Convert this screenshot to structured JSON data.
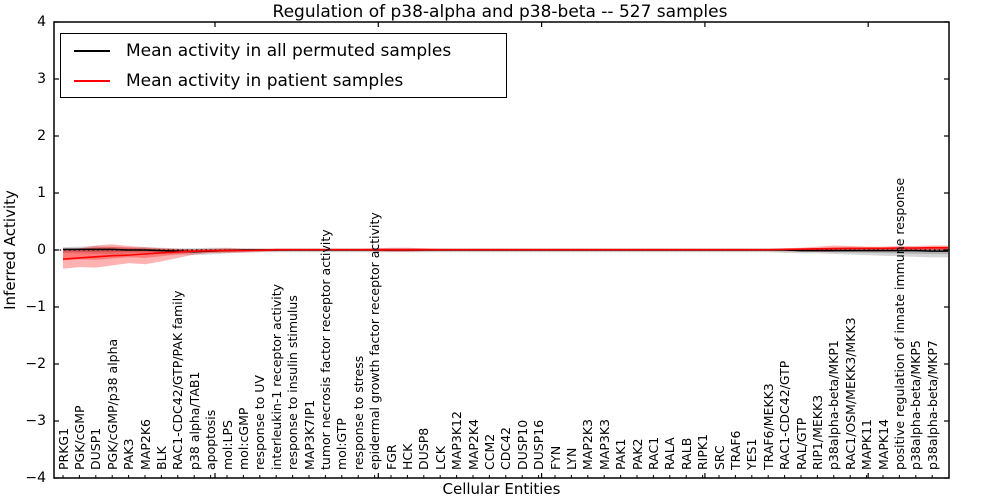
{
  "title": {
    "text": "Regulation of p38-alpha and p38-beta -- 527 samples"
  },
  "axes": {
    "ylabel": "Inferred Activity",
    "xlabel": "Cellular Entities",
    "ytick_values": [
      4,
      3,
      2,
      1,
      0,
      -1,
      -2,
      -3,
      -4
    ],
    "ytick_labels": [
      "4",
      "3",
      "2",
      "1",
      "0",
      "−1",
      "−2",
      "−3",
      "−4"
    ],
    "ylim": [
      -4,
      4
    ]
  },
  "legend": {
    "entries": [
      {
        "label": "Mean activity in all permuted samples",
        "color": "#000000"
      },
      {
        "label": "Mean activity in patient samples",
        "color": "#ff0000"
      }
    ]
  },
  "chart_data": {
    "type": "line",
    "title": "Regulation of p38-alpha and p38-beta -- 527 samples",
    "xlabel": "Cellular Entities",
    "ylabel": "Inferred Activity",
    "ylim": [
      -4,
      4
    ],
    "grid": false,
    "legend_position": "upper left",
    "zero_reference_line": {
      "style": "dotted",
      "color": "#000000",
      "y": 0
    },
    "categories": [
      "PRKG1",
      "PGK/cGMP",
      "DUSP1",
      "PGK/cGMP/p38 alpha",
      "PAK3",
      "MAP2K6",
      "BLK",
      "RAC1-CDC42/GTP/PAK family",
      "p38 alpha/TAB1",
      "apoptosis",
      "mol:LPS",
      "mol:cGMP",
      "response to UV",
      "interleukin-1 receptor activity",
      "response to insulin stimulus",
      "MAP3K7IP1",
      "tumor necrosis factor receptor activity",
      "mol:GTP",
      "response to stress",
      "epidermal growth factor receptor activity",
      "FGR",
      "HCK",
      "DUSP8",
      "LCK",
      "MAP3K12",
      "MAP2K4",
      "CCM2",
      "CDC42",
      "DUSP10",
      "DUSP16",
      "FYN",
      "LYN",
      "MAP2K3",
      "MAP3K3",
      "PAK1",
      "PAK2",
      "RAC1",
      "RALA",
      "RALB",
      "RIPK1",
      "SRC",
      "TRAF6",
      "YES1",
      "TRAF6/MEKK3",
      "RAC1-CDC42/GTP",
      "RAL/GTP",
      "RIP1/MEKK3",
      "p38alpha-beta/MKP1",
      "RAC1/OSM/MEKK3/MKK3",
      "MAPK11",
      "MAPK14",
      "positive regulation of innate immune response",
      "p38alpha-beta/MKP5",
      "p38alpha-beta/MKP7"
    ],
    "series": [
      {
        "name": "Mean activity in all permuted samples",
        "color": "#000000",
        "band_color": "rgba(0,0,0,0.16)",
        "values": [
          0.01,
          0.01,
          0.01,
          0.01,
          0.0,
          0.0,
          -0.01,
          -0.02,
          -0.03,
          -0.02,
          -0.01,
          0.0,
          0.0,
          0.0,
          0.0,
          0.0,
          0.0,
          0.0,
          0.0,
          0.0,
          0.0,
          0.0,
          0.0,
          0.0,
          0.0,
          0.0,
          0.0,
          0.0,
          0.0,
          0.0,
          0.0,
          0.0,
          0.0,
          0.0,
          0.0,
          0.0,
          0.0,
          0.0,
          0.0,
          0.0,
          0.0,
          0.0,
          0.0,
          0.0,
          0.0,
          -0.01,
          -0.01,
          -0.01,
          -0.01,
          -0.01,
          -0.01,
          -0.01,
          -0.01,
          -0.02
        ],
        "band_upper": [
          0.05,
          0.06,
          0.07,
          0.06,
          0.05,
          0.05,
          0.04,
          0.03,
          0.03,
          0.04,
          0.04,
          0.03,
          0.03,
          0.03,
          0.03,
          0.03,
          0.03,
          0.03,
          0.03,
          0.03,
          0.03,
          0.03,
          0.03,
          0.03,
          0.03,
          0.03,
          0.03,
          0.03,
          0.03,
          0.03,
          0.03,
          0.03,
          0.03,
          0.03,
          0.03,
          0.03,
          0.03,
          0.03,
          0.03,
          0.03,
          0.03,
          0.03,
          0.03,
          0.03,
          0.03,
          0.03,
          0.03,
          0.04,
          0.04,
          0.04,
          0.04,
          0.04,
          0.05,
          0.05
        ],
        "band_lower": [
          -0.05,
          -0.06,
          -0.07,
          -0.07,
          -0.06,
          -0.06,
          -0.07,
          -0.08,
          -0.09,
          -0.08,
          -0.06,
          -0.05,
          -0.04,
          -0.04,
          -0.04,
          -0.04,
          -0.04,
          -0.04,
          -0.04,
          -0.04,
          -0.04,
          -0.04,
          -0.04,
          -0.04,
          -0.04,
          -0.04,
          -0.04,
          -0.04,
          -0.04,
          -0.04,
          -0.04,
          -0.04,
          -0.04,
          -0.04,
          -0.04,
          -0.04,
          -0.04,
          -0.04,
          -0.04,
          -0.04,
          -0.04,
          -0.04,
          -0.04,
          -0.04,
          -0.05,
          -0.06,
          -0.06,
          -0.07,
          -0.08,
          -0.09,
          -0.1,
          -0.11,
          -0.12,
          -0.13
        ]
      },
      {
        "name": "Mean activity in patient samples",
        "color": "#ff0000",
        "band_color": "rgba(255,0,0,0.30)",
        "values": [
          -0.16,
          -0.14,
          -0.12,
          -0.1,
          -0.09,
          -0.07,
          -0.05,
          -0.035,
          -0.02,
          -0.015,
          -0.01,
          -0.01,
          -0.005,
          0.005,
          0.005,
          0.005,
          0.005,
          0.005,
          0.005,
          0.005,
          0.005,
          0.005,
          0.005,
          0.005,
          0.005,
          0.005,
          0.005,
          0.005,
          0.005,
          0.005,
          0.005,
          0.005,
          0.005,
          0.005,
          0.005,
          0.005,
          0.005,
          0.005,
          0.005,
          0.005,
          0.005,
          0.005,
          0.005,
          0.005,
          0.01,
          0.015,
          0.02,
          0.025,
          0.03,
          0.03,
          0.03,
          0.035,
          0.035,
          0.04
        ],
        "band_upper": [
          0.0,
          0.03,
          0.08,
          0.1,
          0.07,
          0.05,
          0.03,
          0.02,
          0.01,
          0.02,
          0.03,
          0.02,
          0.02,
          0.02,
          0.02,
          0.02,
          0.02,
          0.02,
          0.02,
          0.03,
          0.04,
          0.04,
          0.03,
          0.02,
          0.02,
          0.02,
          0.02,
          0.02,
          0.02,
          0.02,
          0.02,
          0.02,
          0.02,
          0.02,
          0.02,
          0.02,
          0.02,
          0.02,
          0.02,
          0.02,
          0.02,
          0.02,
          0.02,
          0.02,
          0.03,
          0.04,
          0.06,
          0.08,
          0.07,
          0.06,
          0.06,
          0.07,
          0.07,
          0.08
        ],
        "band_lower": [
          -0.33,
          -0.3,
          -0.31,
          -0.27,
          -0.23,
          -0.25,
          -0.2,
          -0.14,
          -0.08,
          -0.05,
          -0.05,
          -0.04,
          -0.03,
          -0.02,
          -0.01,
          -0.01,
          -0.01,
          -0.01,
          -0.01,
          -0.02,
          -0.03,
          -0.03,
          -0.02,
          -0.01,
          -0.01,
          -0.01,
          -0.01,
          -0.01,
          -0.01,
          -0.01,
          -0.01,
          -0.01,
          -0.01,
          -0.01,
          -0.01,
          -0.01,
          -0.01,
          -0.01,
          -0.01,
          -0.01,
          -0.01,
          -0.01,
          -0.01,
          -0.01,
          -0.01,
          -0.02,
          -0.03,
          -0.03,
          -0.01,
          0.0,
          0.0,
          0.0,
          0.0,
          0.0
        ]
      }
    ]
  }
}
